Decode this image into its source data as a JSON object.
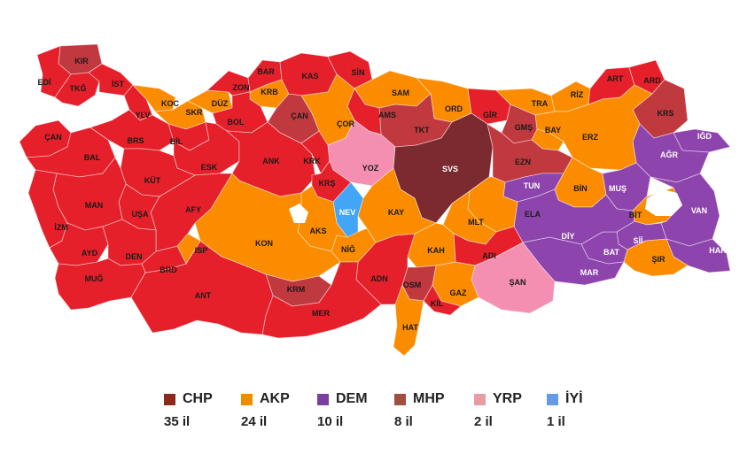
{
  "colors": {
    "CHP": "#e5202a",
    "AKP": "#fb8c00",
    "DEM": "#8e44ad",
    "MHP": "#c0393f",
    "YRP": "#f48fb1",
    "IYI": "#42a5f5",
    "SVS": "#7b2a2f",
    "sea": "#ffffff"
  },
  "legend": [
    {
      "party": "CHP",
      "count": "35 il",
      "color": "#8b2a1c"
    },
    {
      "party": "AKP",
      "count": "24 il",
      "color": "#f08c00"
    },
    {
      "party": "DEM",
      "count": "10 il",
      "color": "#7b3fa0"
    },
    {
      "party": "MHP",
      "count": "8 il",
      "color": "#a14d40"
    },
    {
      "party": "YRP",
      "count": "2 il",
      "color": "#e89aa5"
    },
    {
      "party": "İYİ",
      "count": "1 il",
      "color": "#6699e8"
    }
  ],
  "provinces": [
    {
      "code": "KIR",
      "party": "MHP"
    },
    {
      "code": "EDİ",
      "party": "CHP"
    },
    {
      "code": "TKĞ",
      "party": "CHP"
    },
    {
      "code": "İST",
      "party": "CHP"
    },
    {
      "code": "YLV",
      "party": "CHP"
    },
    {
      "code": "KOC",
      "party": "AKP"
    },
    {
      "code": "SKR",
      "party": "AKP"
    },
    {
      "code": "DÜZ",
      "party": "AKP"
    },
    {
      "code": "ZON",
      "party": "CHP"
    },
    {
      "code": "BAR",
      "party": "CHP"
    },
    {
      "code": "KRB",
      "party": "AKP"
    },
    {
      "code": "KAS",
      "party": "CHP"
    },
    {
      "code": "SİN",
      "party": "CHP"
    },
    {
      "code": "SAM",
      "party": "AKP"
    },
    {
      "code": "ORD",
      "party": "AKP"
    },
    {
      "code": "GİR",
      "party": "CHP"
    },
    {
      "code": "TRA",
      "party": "AKP"
    },
    {
      "code": "RİZ",
      "party": "AKP"
    },
    {
      "code": "ART",
      "party": "CHP"
    },
    {
      "code": "ARD",
      "party": "CHP"
    },
    {
      "code": "KRS",
      "party": "MHP"
    },
    {
      "code": "IĞD",
      "party": "DEM"
    },
    {
      "code": "AĞR",
      "party": "DEM"
    },
    {
      "code": "ERZ",
      "party": "AKP"
    },
    {
      "code": "BAY",
      "party": "AKP"
    },
    {
      "code": "GMŞ",
      "party": "MHP"
    },
    {
      "code": "TKT",
      "party": "MHP"
    },
    {
      "code": "AMS",
      "party": "CHP"
    },
    {
      "code": "ÇOR",
      "party": "AKP"
    },
    {
      "code": "ÇAN",
      "party": "MHP"
    },
    {
      "code": "BOL",
      "party": "CHP"
    },
    {
      "code": "BİL",
      "party": "CHP"
    },
    {
      "code": "ÇAN2",
      "label": "ÇAN",
      "party": "CHP"
    },
    {
      "code": "BAL",
      "party": "CHP"
    },
    {
      "code": "BRS",
      "party": "CHP"
    },
    {
      "code": "ESK",
      "party": "CHP"
    },
    {
      "code": "ANK",
      "party": "CHP"
    },
    {
      "code": "KRK",
      "party": "CHP"
    },
    {
      "code": "YOZ",
      "party": "YRP"
    },
    {
      "code": "SVS",
      "party": "SVS"
    },
    {
      "code": "EZN",
      "party": "MHP"
    },
    {
      "code": "TUN",
      "party": "DEM"
    },
    {
      "code": "BİN",
      "party": "AKP"
    },
    {
      "code": "MUŞ",
      "party": "DEM"
    },
    {
      "code": "BİT",
      "party": "AKP"
    },
    {
      "code": "VAN",
      "party": "DEM"
    },
    {
      "code": "HAK",
      "party": "DEM"
    },
    {
      "code": "ŞIR",
      "party": "AKP"
    },
    {
      "code": "Sİİ",
      "party": "DEM"
    },
    {
      "code": "BAT",
      "party": "DEM"
    },
    {
      "code": "MAR",
      "party": "DEM"
    },
    {
      "code": "DİY",
      "party": "DEM"
    },
    {
      "code": "ELA",
      "party": "AKP"
    },
    {
      "code": "MLT",
      "party": "AKP"
    },
    {
      "code": "ADI",
      "party": "CHP"
    },
    {
      "code": "ŞAN",
      "party": "YRP"
    },
    {
      "code": "GAZ",
      "party": "AKP"
    },
    {
      "code": "KİL",
      "party": "CHP"
    },
    {
      "code": "KAH",
      "party": "AKP"
    },
    {
      "code": "OSM",
      "party": "MHP"
    },
    {
      "code": "HAT",
      "party": "AKP"
    },
    {
      "code": "ADN",
      "party": "CHP"
    },
    {
      "code": "KAY",
      "party": "AKP"
    },
    {
      "code": "NİĞ",
      "party": "AKP"
    },
    {
      "code": "NEV",
      "party": "IYI"
    },
    {
      "code": "KRŞ",
      "party": "CHP"
    },
    {
      "code": "AKS",
      "party": "AKP"
    },
    {
      "code": "KON",
      "party": "AKP"
    },
    {
      "code": "KRM",
      "party": "MHP"
    },
    {
      "code": "MER",
      "party": "CHP"
    },
    {
      "code": "ANT",
      "party": "CHP"
    },
    {
      "code": "ISP",
      "party": "AKP"
    },
    {
      "code": "BRD",
      "party": "CHP"
    },
    {
      "code": "AFY",
      "party": "CHP"
    },
    {
      "code": "KÜT",
      "party": "CHP"
    },
    {
      "code": "UŞA",
      "party": "CHP"
    },
    {
      "code": "MAN",
      "party": "CHP"
    },
    {
      "code": "İZM",
      "party": "CHP"
    },
    {
      "code": "AYD",
      "party": "CHP"
    },
    {
      "code": "DEN",
      "party": "CHP"
    },
    {
      "code": "MUĞ",
      "party": "CHP"
    }
  ]
}
